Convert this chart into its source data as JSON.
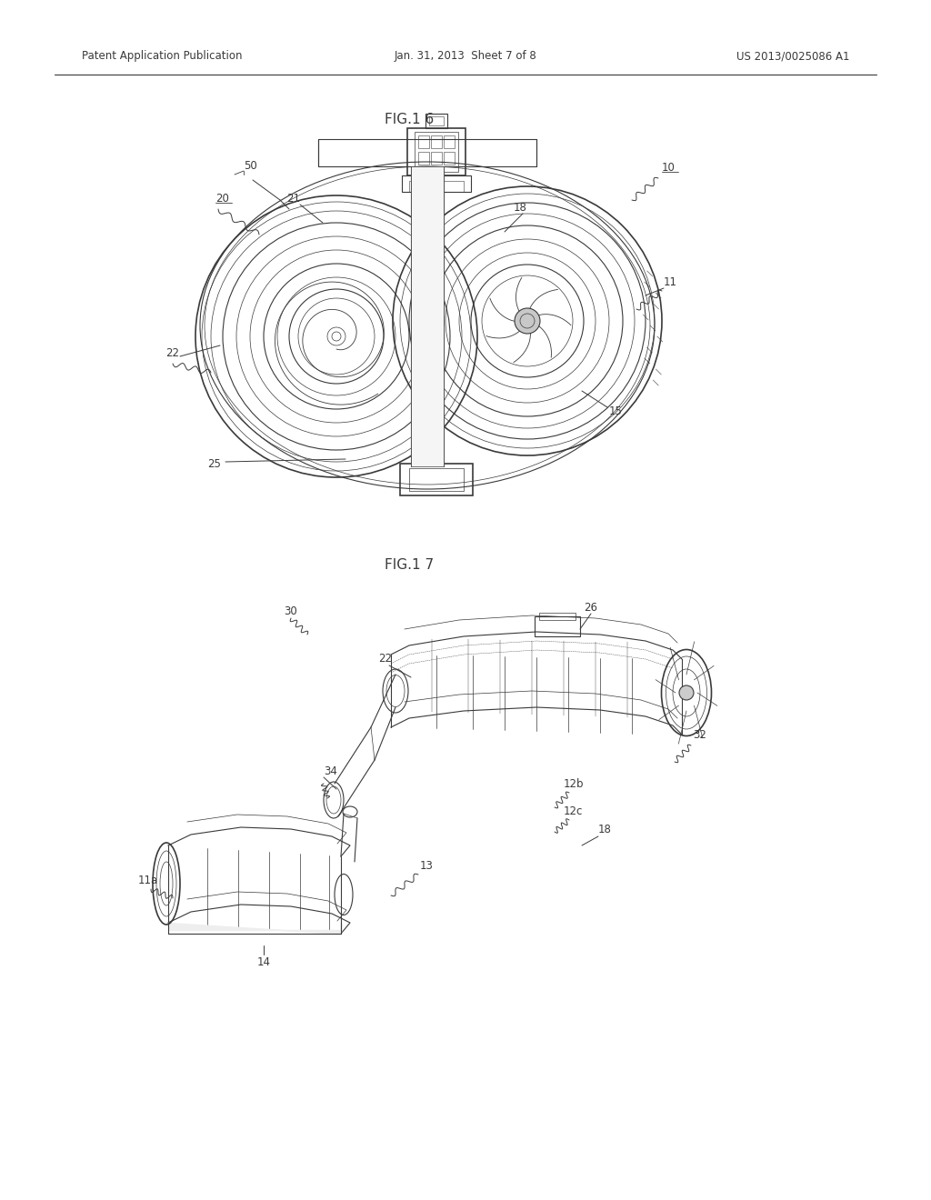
{
  "page_width": 10.24,
  "page_height": 13.2,
  "bg_color": "#ffffff",
  "header_left": "Patent Application Publication",
  "header_mid": "Jan. 31, 2013  Sheet 7 of 8",
  "header_right": "US 2013/0025086 A1",
  "fig16_title": "FIG.1 6",
  "fig17_title": "FIG.1 7",
  "line_color": "#3a3a3a",
  "label_fontsize": 8.5,
  "title_fontsize": 11,
  "header_fontsize": 8.5
}
